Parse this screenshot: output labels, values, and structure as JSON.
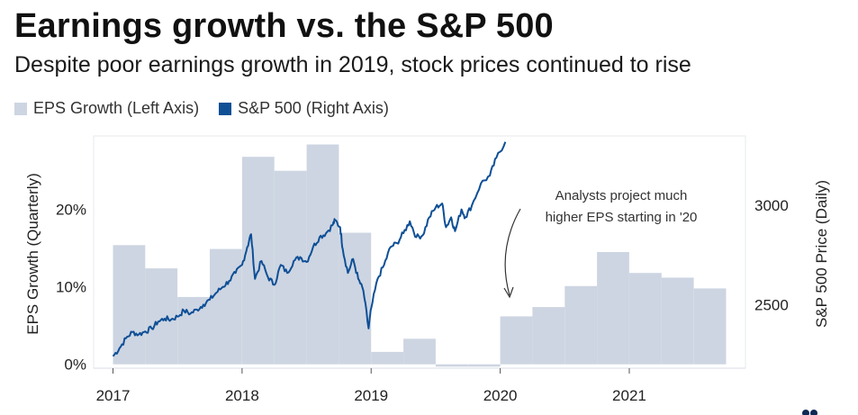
{
  "header": {
    "title": "Earnings growth vs. the S&P 500",
    "subtitle": "Despite poor earnings growth in 2019, stock prices continued to rise"
  },
  "colors": {
    "bar": "#cdd5e2",
    "line": "#0e4f96",
    "text": "#222222"
  },
  "chart_data": {
    "type": "bar+line",
    "title": "Earnings growth vs. the S&P 500",
    "subtitle": "Despite poor earnings growth in 2019, stock prices continued to rise",
    "legend": [
      {
        "name": "EPS Growth (Left Axis)",
        "kind": "bar"
      },
      {
        "name": "S&P 500 (Right Axis)",
        "kind": "line"
      }
    ],
    "legend_position": "top-left",
    "x_ticks": [
      "2017",
      "2018",
      "2019",
      "2020",
      "2021"
    ],
    "x_range": [
      2016.85,
      2021.9
    ],
    "left_axis": {
      "label": "EPS Growth (Quarterly)",
      "ylim": [
        -0.5,
        29.5
      ],
      "ticks": [
        0,
        10,
        20
      ],
      "tick_labels": [
        "0%",
        "10%",
        "20%"
      ]
    },
    "right_axis": {
      "label": "S&P 500 Price (Daily)",
      "ylim": [
        2180,
        3350
      ],
      "ticks": [
        2500,
        3000
      ],
      "tick_labels": [
        "2500",
        "3000"
      ]
    },
    "eps_growth": {
      "name": "EPS Growth (Left Axis)",
      "quarters": [
        "2017 Q1",
        "2017 Q2",
        "2017 Q3",
        "2017 Q4",
        "2018 Q1",
        "2018 Q2",
        "2018 Q3",
        "2018 Q4",
        "2019 Q1",
        "2019 Q2",
        "2019 Q3",
        "2019 Q4",
        "2020 Q1",
        "2020 Q2",
        "2020 Q3",
        "2020 Q4",
        "2021 Q1",
        "2021 Q2",
        "2021 Q3"
      ],
      "values": [
        15.4,
        12.4,
        8.7,
        14.9,
        26.8,
        25.0,
        28.4,
        17.0,
        1.6,
        3.3,
        -0.3,
        -0.3,
        6.2,
        7.4,
        10.1,
        14.5,
        11.8,
        11.2,
        9.8
      ]
    },
    "sp500": {
      "name": "S&P 500 (Right Axis)",
      "points": [
        [
          2017.0,
          2240
        ],
        [
          2017.05,
          2280
        ],
        [
          2017.1,
          2330
        ],
        [
          2017.15,
          2362
        ],
        [
          2017.2,
          2350
        ],
        [
          2017.25,
          2365
        ],
        [
          2017.3,
          2380
        ],
        [
          2017.35,
          2415
        ],
        [
          2017.4,
          2430
        ],
        [
          2017.45,
          2425
        ],
        [
          2017.5,
          2440
        ],
        [
          2017.55,
          2470
        ],
        [
          2017.6,
          2455
        ],
        [
          2017.65,
          2475
        ],
        [
          2017.7,
          2500
        ],
        [
          2017.75,
          2525
        ],
        [
          2017.8,
          2560
        ],
        [
          2017.85,
          2590
        ],
        [
          2017.9,
          2620
        ],
        [
          2017.95,
          2660
        ],
        [
          2018.0,
          2700
        ],
        [
          2018.04,
          2790
        ],
        [
          2018.07,
          2855
        ],
        [
          2018.1,
          2630
        ],
        [
          2018.15,
          2720
        ],
        [
          2018.2,
          2640
        ],
        [
          2018.25,
          2600
        ],
        [
          2018.3,
          2700
        ],
        [
          2018.35,
          2660
        ],
        [
          2018.4,
          2720
        ],
        [
          2018.45,
          2740
        ],
        [
          2018.5,
          2715
        ],
        [
          2018.55,
          2790
        ],
        [
          2018.6,
          2840
        ],
        [
          2018.65,
          2860
        ],
        [
          2018.7,
          2900
        ],
        [
          2018.72,
          2925
        ],
        [
          2018.76,
          2890
        ],
        [
          2018.78,
          2780
        ],
        [
          2018.82,
          2660
        ],
        [
          2018.86,
          2730
        ],
        [
          2018.9,
          2630
        ],
        [
          2018.94,
          2570
        ],
        [
          2018.98,
          2380
        ],
        [
          2019.0,
          2480
        ],
        [
          2019.05,
          2630
        ],
        [
          2019.1,
          2700
        ],
        [
          2019.15,
          2790
        ],
        [
          2019.2,
          2810
        ],
        [
          2019.25,
          2860
        ],
        [
          2019.3,
          2920
        ],
        [
          2019.35,
          2840
        ],
        [
          2019.4,
          2850
        ],
        [
          2019.45,
          2940
        ],
        [
          2019.5,
          2990
        ],
        [
          2019.55,
          3010
        ],
        [
          2019.58,
          2890
        ],
        [
          2019.62,
          2940
        ],
        [
          2019.65,
          2870
        ],
        [
          2019.7,
          2980
        ],
        [
          2019.73,
          2940
        ],
        [
          2019.78,
          3000
        ],
        [
          2019.85,
          3110
        ],
        [
          2019.92,
          3150
        ],
        [
          2019.97,
          3240
        ],
        [
          2020.04,
          3320
        ]
      ]
    },
    "annotation": "Analysts project much higher EPS starting in '20"
  },
  "annotation": {
    "line1": "Analysts project much",
    "line2": "higher EPS starting in '20"
  }
}
